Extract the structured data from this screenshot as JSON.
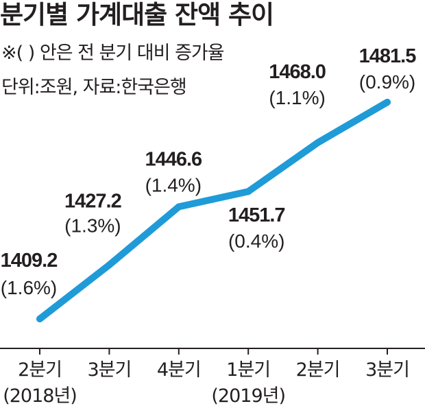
{
  "title": "분기별 가계대출 잔액 추이",
  "notes": {
    "line1": "※( ) 안은 전 분기 대비 증가율",
    "line2": "단위:조원, 자료:한국은행"
  },
  "colors": {
    "line": "#1f9bd7",
    "axis": "#231f20",
    "text": "#231f20"
  },
  "chart_data": {
    "type": "line",
    "categories": [
      "2분기",
      "3분기",
      "4분기",
      "1분기",
      "2분기",
      "3분기"
    ],
    "year_labels": [
      {
        "text": "(2018년)",
        "category_index": 0
      },
      {
        "text": "(2019년)",
        "category_index": 3
      }
    ],
    "series": [
      {
        "values": [
          1409.2,
          1427.2,
          1446.6,
          1451.7,
          1468.0,
          1481.5
        ],
        "value_labels": [
          "1409.2",
          "1427.2",
          "1446.6",
          "1451.7",
          "1468.0",
          "1481.5"
        ],
        "growth_labels": [
          "(1.6%)",
          "(1.3%)",
          "(1.4%)",
          "(0.4%)",
          "(1.1%)",
          "(0.9%)"
        ]
      }
    ],
    "title": "분기별 가계대출 잔액 추이",
    "xlabel": "",
    "ylabel": "",
    "grid": false
  }
}
